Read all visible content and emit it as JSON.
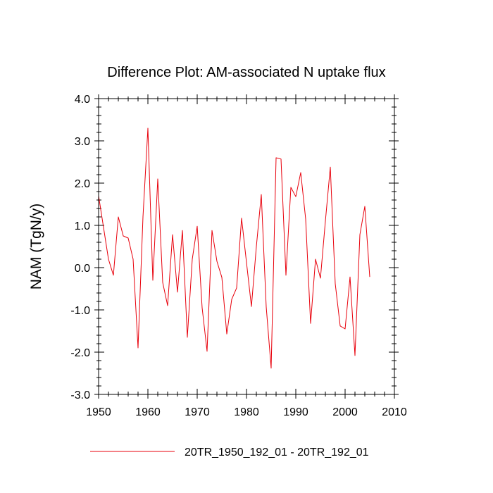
{
  "chart_data": {
    "type": "line",
    "title": "Difference Plot: AM-associated N uptake flux",
    "xlabel": "",
    "ylabel": "NAM  (TgN/y)",
    "xlim": [
      1950,
      2010
    ],
    "ylim": [
      -3.0,
      4.0
    ],
    "x_ticks": [
      1950,
      1960,
      1970,
      1980,
      1990,
      2000,
      2010
    ],
    "x_tick_labels": [
      "1950",
      "1960",
      "1970",
      "1980",
      "1990",
      "2000",
      "2010"
    ],
    "y_ticks": [
      -3.0,
      -2.0,
      -1.0,
      0.0,
      1.0,
      2.0,
      3.0,
      4.0
    ],
    "y_tick_labels": [
      "-3.0",
      "-2.0",
      "-1.0",
      "0.0",
      "1.0",
      "2.0",
      "3.0",
      "4.0"
    ],
    "legend_position": "bottom",
    "series": [
      {
        "name": "20TR_1950_192_01 - 20TR_192_01",
        "color": "#e8000b",
        "x": [
          1950,
          1951,
          1952,
          1953,
          1954,
          1955,
          1956,
          1957,
          1958,
          1959,
          1960,
          1961,
          1962,
          1963,
          1964,
          1965,
          1966,
          1967,
          1968,
          1969,
          1970,
          1971,
          1972,
          1973,
          1974,
          1975,
          1976,
          1977,
          1978,
          1979,
          1980,
          1981,
          1982,
          1983,
          1984,
          1985,
          1986,
          1987,
          1988,
          1989,
          1990,
          1991,
          1992,
          1993,
          1994,
          1995,
          1996,
          1997,
          1998,
          1999,
          2000,
          2001,
          2002,
          2003,
          2004,
          2005
        ],
        "values": [
          1.7,
          0.95,
          0.2,
          -0.18,
          1.2,
          0.75,
          0.7,
          0.2,
          -1.9,
          1.2,
          3.3,
          -0.3,
          2.1,
          -0.35,
          -0.9,
          0.78,
          -0.58,
          0.88,
          -1.65,
          0.2,
          0.98,
          -0.95,
          -1.98,
          0.88,
          0.15,
          -0.23,
          -1.57,
          -0.75,
          -0.48,
          1.17,
          0.12,
          -0.92,
          0.5,
          1.73,
          -0.93,
          -2.38,
          2.6,
          2.57,
          -0.18,
          1.9,
          1.68,
          2.25,
          1.15,
          -1.32,
          0.2,
          -0.25,
          1.1,
          2.38,
          -0.38,
          -1.38,
          -1.45,
          -0.22,
          -2.08,
          0.78,
          1.45,
          -0.22
        ]
      }
    ]
  }
}
